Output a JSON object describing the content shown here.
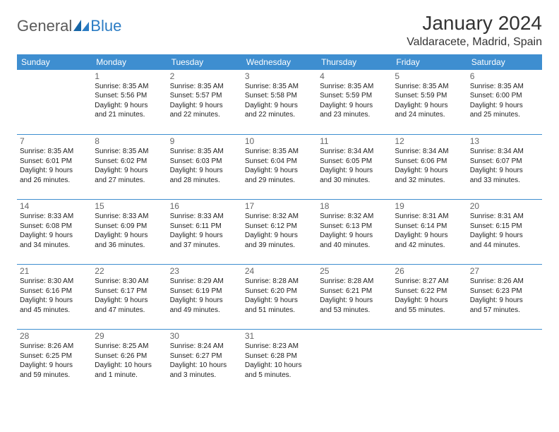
{
  "logo": {
    "text1": "General",
    "text2": "Blue"
  },
  "title": "January 2024",
  "location": "Valdaracete, Madrid, Spain",
  "colors": {
    "header_bg": "#3e8ed0",
    "header_text": "#ffffff",
    "rule": "#3e8ed0",
    "logo_gray": "#5a5a5a",
    "logo_blue": "#2b7cc4",
    "body_text": "#222222",
    "daynum": "#666666"
  },
  "typography": {
    "title_fontsize": 28,
    "location_fontsize": 16,
    "header_fontsize": 12,
    "daynum_fontsize": 12,
    "info_fontsize": 10
  },
  "days_of_week": [
    "Sunday",
    "Monday",
    "Tuesday",
    "Wednesday",
    "Thursday",
    "Friday",
    "Saturday"
  ],
  "weeks": [
    [
      null,
      {
        "n": "1",
        "sr": "Sunrise: 8:35 AM",
        "ss": "Sunset: 5:56 PM",
        "d1": "Daylight: 9 hours",
        "d2": "and 21 minutes."
      },
      {
        "n": "2",
        "sr": "Sunrise: 8:35 AM",
        "ss": "Sunset: 5:57 PM",
        "d1": "Daylight: 9 hours",
        "d2": "and 22 minutes."
      },
      {
        "n": "3",
        "sr": "Sunrise: 8:35 AM",
        "ss": "Sunset: 5:58 PM",
        "d1": "Daylight: 9 hours",
        "d2": "and 22 minutes."
      },
      {
        "n": "4",
        "sr": "Sunrise: 8:35 AM",
        "ss": "Sunset: 5:59 PM",
        "d1": "Daylight: 9 hours",
        "d2": "and 23 minutes."
      },
      {
        "n": "5",
        "sr": "Sunrise: 8:35 AM",
        "ss": "Sunset: 5:59 PM",
        "d1": "Daylight: 9 hours",
        "d2": "and 24 minutes."
      },
      {
        "n": "6",
        "sr": "Sunrise: 8:35 AM",
        "ss": "Sunset: 6:00 PM",
        "d1": "Daylight: 9 hours",
        "d2": "and 25 minutes."
      }
    ],
    [
      {
        "n": "7",
        "sr": "Sunrise: 8:35 AM",
        "ss": "Sunset: 6:01 PM",
        "d1": "Daylight: 9 hours",
        "d2": "and 26 minutes."
      },
      {
        "n": "8",
        "sr": "Sunrise: 8:35 AM",
        "ss": "Sunset: 6:02 PM",
        "d1": "Daylight: 9 hours",
        "d2": "and 27 minutes."
      },
      {
        "n": "9",
        "sr": "Sunrise: 8:35 AM",
        "ss": "Sunset: 6:03 PM",
        "d1": "Daylight: 9 hours",
        "d2": "and 28 minutes."
      },
      {
        "n": "10",
        "sr": "Sunrise: 8:35 AM",
        "ss": "Sunset: 6:04 PM",
        "d1": "Daylight: 9 hours",
        "d2": "and 29 minutes."
      },
      {
        "n": "11",
        "sr": "Sunrise: 8:34 AM",
        "ss": "Sunset: 6:05 PM",
        "d1": "Daylight: 9 hours",
        "d2": "and 30 minutes."
      },
      {
        "n": "12",
        "sr": "Sunrise: 8:34 AM",
        "ss": "Sunset: 6:06 PM",
        "d1": "Daylight: 9 hours",
        "d2": "and 32 minutes."
      },
      {
        "n": "13",
        "sr": "Sunrise: 8:34 AM",
        "ss": "Sunset: 6:07 PM",
        "d1": "Daylight: 9 hours",
        "d2": "and 33 minutes."
      }
    ],
    [
      {
        "n": "14",
        "sr": "Sunrise: 8:33 AM",
        "ss": "Sunset: 6:08 PM",
        "d1": "Daylight: 9 hours",
        "d2": "and 34 minutes."
      },
      {
        "n": "15",
        "sr": "Sunrise: 8:33 AM",
        "ss": "Sunset: 6:09 PM",
        "d1": "Daylight: 9 hours",
        "d2": "and 36 minutes."
      },
      {
        "n": "16",
        "sr": "Sunrise: 8:33 AM",
        "ss": "Sunset: 6:11 PM",
        "d1": "Daylight: 9 hours",
        "d2": "and 37 minutes."
      },
      {
        "n": "17",
        "sr": "Sunrise: 8:32 AM",
        "ss": "Sunset: 6:12 PM",
        "d1": "Daylight: 9 hours",
        "d2": "and 39 minutes."
      },
      {
        "n": "18",
        "sr": "Sunrise: 8:32 AM",
        "ss": "Sunset: 6:13 PM",
        "d1": "Daylight: 9 hours",
        "d2": "and 40 minutes."
      },
      {
        "n": "19",
        "sr": "Sunrise: 8:31 AM",
        "ss": "Sunset: 6:14 PM",
        "d1": "Daylight: 9 hours",
        "d2": "and 42 minutes."
      },
      {
        "n": "20",
        "sr": "Sunrise: 8:31 AM",
        "ss": "Sunset: 6:15 PM",
        "d1": "Daylight: 9 hours",
        "d2": "and 44 minutes."
      }
    ],
    [
      {
        "n": "21",
        "sr": "Sunrise: 8:30 AM",
        "ss": "Sunset: 6:16 PM",
        "d1": "Daylight: 9 hours",
        "d2": "and 45 minutes."
      },
      {
        "n": "22",
        "sr": "Sunrise: 8:30 AM",
        "ss": "Sunset: 6:17 PM",
        "d1": "Daylight: 9 hours",
        "d2": "and 47 minutes."
      },
      {
        "n": "23",
        "sr": "Sunrise: 8:29 AM",
        "ss": "Sunset: 6:19 PM",
        "d1": "Daylight: 9 hours",
        "d2": "and 49 minutes."
      },
      {
        "n": "24",
        "sr": "Sunrise: 8:28 AM",
        "ss": "Sunset: 6:20 PM",
        "d1": "Daylight: 9 hours",
        "d2": "and 51 minutes."
      },
      {
        "n": "25",
        "sr": "Sunrise: 8:28 AM",
        "ss": "Sunset: 6:21 PM",
        "d1": "Daylight: 9 hours",
        "d2": "and 53 minutes."
      },
      {
        "n": "26",
        "sr": "Sunrise: 8:27 AM",
        "ss": "Sunset: 6:22 PM",
        "d1": "Daylight: 9 hours",
        "d2": "and 55 minutes."
      },
      {
        "n": "27",
        "sr": "Sunrise: 8:26 AM",
        "ss": "Sunset: 6:23 PM",
        "d1": "Daylight: 9 hours",
        "d2": "and 57 minutes."
      }
    ],
    [
      {
        "n": "28",
        "sr": "Sunrise: 8:26 AM",
        "ss": "Sunset: 6:25 PM",
        "d1": "Daylight: 9 hours",
        "d2": "and 59 minutes."
      },
      {
        "n": "29",
        "sr": "Sunrise: 8:25 AM",
        "ss": "Sunset: 6:26 PM",
        "d1": "Daylight: 10 hours",
        "d2": "and 1 minute."
      },
      {
        "n": "30",
        "sr": "Sunrise: 8:24 AM",
        "ss": "Sunset: 6:27 PM",
        "d1": "Daylight: 10 hours",
        "d2": "and 3 minutes."
      },
      {
        "n": "31",
        "sr": "Sunrise: 8:23 AM",
        "ss": "Sunset: 6:28 PM",
        "d1": "Daylight: 10 hours",
        "d2": "and 5 minutes."
      },
      null,
      null,
      null
    ]
  ]
}
